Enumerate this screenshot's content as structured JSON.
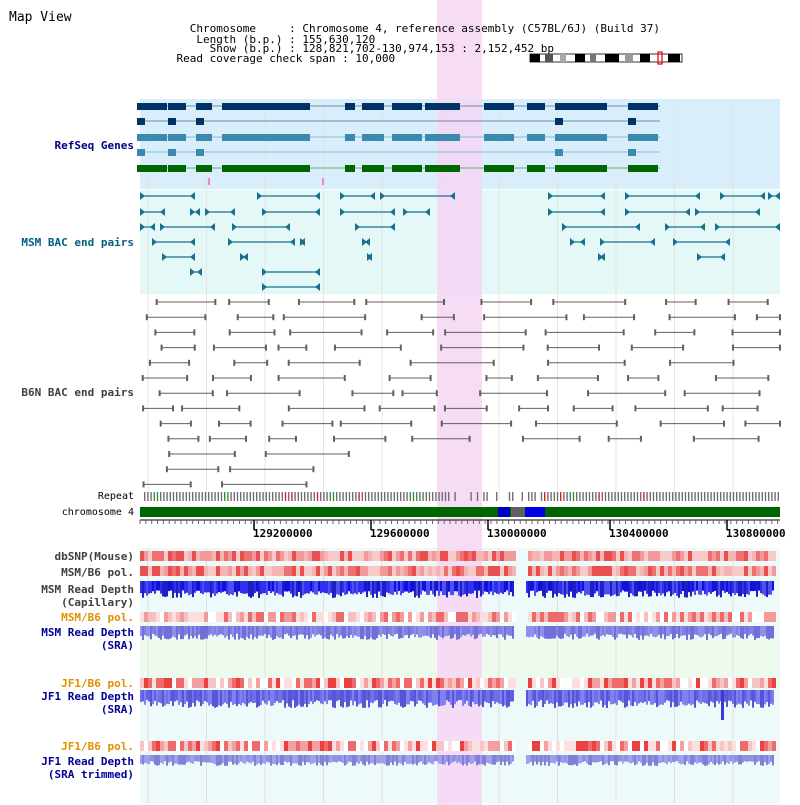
{
  "header": {
    "title": "Map View",
    "info_lines": [
      {
        "key": "Chromosome",
        "value": "Chromosome 4, reference assembly (C57BL/6J) (Build 37)"
      },
      {
        "key": "Length (b.p.)",
        "value": "155,630,120"
      },
      {
        "key": "Show (b.p.)",
        "value": "128,821,702-130,974,153 : 2,152,452 bp"
      },
      {
        "key": "Read coverage check span",
        "value": "10,000"
      }
    ]
  },
  "tracks": {
    "refseq": {
      "label": "RefSeq Genes",
      "color": "#000080"
    },
    "msm_bac": {
      "label": "MSM BAC end pairs",
      "color": "#006080"
    },
    "b6n_bac": {
      "label": "B6N BAC end pairs",
      "color": "#404040"
    },
    "repeat": {
      "label": "Repeat"
    },
    "chromosome": {
      "label": "chromosome 4",
      "color": "#006600"
    },
    "dbsnp": {
      "label": "dbSNP(Mouse)",
      "color": "#404040"
    },
    "msm_b6_pol": {
      "label": "MSM/B6 pol.",
      "color": "#404040"
    },
    "msm_depth_cap": {
      "label": "MSM Read Depth\n(Capillary)",
      "color": "#404040"
    },
    "msm_b6_pol2": {
      "label": "MSM/B6 pol.",
      "color": "#e09000"
    },
    "msm_depth_sra": {
      "label": "MSM Read Depth\n(SRA)",
      "color": "#000099"
    },
    "jf1_b6_pol": {
      "label": "JF1/B6 pol.",
      "color": "#e09000"
    },
    "jf1_depth_sra": {
      "label": "JF1 Read Depth\n(SRA)",
      "color": "#000099"
    },
    "jf1_b6_pol2": {
      "label": "JF1/B6 pol.",
      "color": "#e09000"
    },
    "jf1_depth_trim": {
      "label": "JF1 Read Depth\n(SRA trimmed)",
      "color": "#000099"
    }
  },
  "axis": {
    "ticks": [
      "129200000",
      "129600000",
      "130000000",
      "130400000",
      "130800000"
    ]
  },
  "colors": {
    "highlight": "#f6d6f4",
    "refseq_bg": "#d8eefa",
    "msm_bg": "#e4f8f8",
    "snp_red": "#e04040",
    "depth_blue": "#2020e0"
  }
}
